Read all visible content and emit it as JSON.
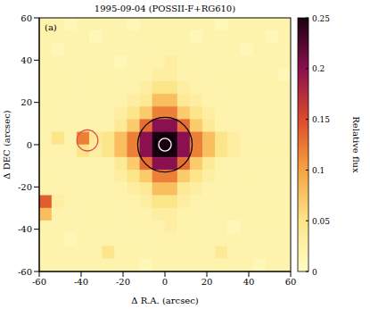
{
  "chart_data": {
    "type": "heatmap",
    "title": "1995-09-04 (POSSII-F+RG610)",
    "panel_label": "(a)",
    "x_label": "Δ R.A. (arcsec)",
    "y_label": "Δ DEC (arcsec)",
    "xlim": [
      -60,
      60
    ],
    "ylim": [
      -60,
      60
    ],
    "xticks": [
      -60,
      -40,
      -20,
      0,
      20,
      40,
      60
    ],
    "yticks": [
      -60,
      -40,
      -20,
      0,
      20,
      40,
      60
    ],
    "x": [
      -57,
      -51,
      -45,
      -39,
      -33,
      -27,
      -21,
      -15,
      -9,
      -3,
      3,
      9,
      15,
      21,
      27,
      33,
      39,
      45,
      51,
      57
    ],
    "y": [
      57,
      51,
      45,
      39,
      33,
      27,
      21,
      15,
      9,
      3,
      -3,
      -9,
      -15,
      -21,
      -27,
      -33,
      -39,
      -45,
      -51,
      -57
    ],
    "cells": [
      [
        0.02,
        0.02,
        0.01,
        0.02,
        0.02,
        0.02,
        0.02,
        0.01,
        0.02,
        0.02,
        0.02,
        0.02,
        0.02,
        0.02,
        0.01,
        0.02,
        0.02,
        0.02,
        0.02,
        0.02
      ],
      [
        0.02,
        0.02,
        0.02,
        0.02,
        0.01,
        0.02,
        0.02,
        0.02,
        0.02,
        0.02,
        0.02,
        0.02,
        0.01,
        0.02,
        0.02,
        0.02,
        0.02,
        0.02,
        0.01,
        0.02
      ],
      [
        0.02,
        0.01,
        0.02,
        0.02,
        0.02,
        0.02,
        0.02,
        0.02,
        0.02,
        0.02,
        0.02,
        0.02,
        0.02,
        0.02,
        0.02,
        0.02,
        0.01,
        0.02,
        0.02,
        0.02
      ],
      [
        0.02,
        0.02,
        0.02,
        0.02,
        0.02,
        0.02,
        0.01,
        0.02,
        0.02,
        0.02,
        0.03,
        0.02,
        0.02,
        0.02,
        0.02,
        0.02,
        0.02,
        0.02,
        0.02,
        0.02
      ],
      [
        0.02,
        0.02,
        0.02,
        0.02,
        0.02,
        0.02,
        0.02,
        0.02,
        0.02,
        0.03,
        0.03,
        0.02,
        0.02,
        0.02,
        0.02,
        0.02,
        0.02,
        0.02,
        0.02,
        0.01
      ],
      [
        0.02,
        0.02,
        0.02,
        0.02,
        0.02,
        0.02,
        0.02,
        0.02,
        0.03,
        0.05,
        0.05,
        0.03,
        0.02,
        0.02,
        0.02,
        0.02,
        0.02,
        0.02,
        0.02,
        0.02
      ],
      [
        0.02,
        0.02,
        0.02,
        0.02,
        0.02,
        0.02,
        0.02,
        0.03,
        0.04,
        0.08,
        0.08,
        0.04,
        0.03,
        0.02,
        0.02,
        0.02,
        0.02,
        0.02,
        0.02,
        0.02
      ],
      [
        0.02,
        0.02,
        0.02,
        0.02,
        0.02,
        0.02,
        0.03,
        0.05,
        0.07,
        0.12,
        0.12,
        0.07,
        0.05,
        0.03,
        0.02,
        0.02,
        0.02,
        0.02,
        0.02,
        0.02
      ],
      [
        0.02,
        0.02,
        0.02,
        0.02,
        0.02,
        0.02,
        0.04,
        0.07,
        0.13,
        0.2,
        0.2,
        0.13,
        0.07,
        0.04,
        0.02,
        0.02,
        0.02,
        0.02,
        0.02,
        0.02
      ],
      [
        0.02,
        0.05,
        0.02,
        0.12,
        0.04,
        0.05,
        0.08,
        0.12,
        0.2,
        0.25,
        0.25,
        0.2,
        0.12,
        0.08,
        0.05,
        0.03,
        0.02,
        0.02,
        0.02,
        0.02
      ],
      [
        0.02,
        0.02,
        0.02,
        0.05,
        0.03,
        0.05,
        0.08,
        0.12,
        0.2,
        0.25,
        0.25,
        0.2,
        0.12,
        0.08,
        0.05,
        0.03,
        0.02,
        0.02,
        0.02,
        0.02
      ],
      [
        0.02,
        0.02,
        0.02,
        0.02,
        0.02,
        0.02,
        0.04,
        0.07,
        0.13,
        0.2,
        0.2,
        0.13,
        0.07,
        0.04,
        0.02,
        0.02,
        0.02,
        0.02,
        0.02,
        0.02
      ],
      [
        0.02,
        0.02,
        0.02,
        0.02,
        0.02,
        0.02,
        0.03,
        0.05,
        0.07,
        0.12,
        0.12,
        0.07,
        0.05,
        0.03,
        0.02,
        0.02,
        0.02,
        0.02,
        0.02,
        0.02
      ],
      [
        0.02,
        0.02,
        0.02,
        0.02,
        0.02,
        0.02,
        0.02,
        0.03,
        0.04,
        0.08,
        0.08,
        0.04,
        0.03,
        0.02,
        0.02,
        0.02,
        0.02,
        0.02,
        0.02,
        0.02
      ],
      [
        0.14,
        0.03,
        0.02,
        0.02,
        0.02,
        0.02,
        0.02,
        0.02,
        0.03,
        0.05,
        0.05,
        0.03,
        0.02,
        0.02,
        0.02,
        0.02,
        0.02,
        0.02,
        0.02,
        0.02
      ],
      [
        0.08,
        0.02,
        0.02,
        0.02,
        0.02,
        0.02,
        0.02,
        0.02,
        0.02,
        0.03,
        0.03,
        0.02,
        0.02,
        0.02,
        0.02,
        0.02,
        0.02,
        0.02,
        0.02,
        0.02
      ],
      [
        0.02,
        0.02,
        0.02,
        0.02,
        0.02,
        0.02,
        0.02,
        0.02,
        0.02,
        0.02,
        0.03,
        0.02,
        0.02,
        0.02,
        0.02,
        0.01,
        0.02,
        0.02,
        0.02,
        0.02
      ],
      [
        0.02,
        0.02,
        0.01,
        0.02,
        0.02,
        0.02,
        0.02,
        0.02,
        0.02,
        0.02,
        0.02,
        0.02,
        0.02,
        0.02,
        0.02,
        0.02,
        0.02,
        0.02,
        0.02,
        0.02
      ],
      [
        0.02,
        0.02,
        0.02,
        0.02,
        0.02,
        0.05,
        0.02,
        0.02,
        0.02,
        0.02,
        0.02,
        0.02,
        0.02,
        0.02,
        0.04,
        0.02,
        0.02,
        0.02,
        0.02,
        0.02
      ],
      [
        0.02,
        0.02,
        0.02,
        0.02,
        0.02,
        0.02,
        0.02,
        0.02,
        0.01,
        0.02,
        0.02,
        0.02,
        0.02,
        0.02,
        0.02,
        0.02,
        0.02,
        0.01,
        0.02,
        0.02
      ]
    ],
    "colorbar": {
      "label": "Relative flux",
      "range": [
        0,
        0.25
      ],
      "ticks": [
        0,
        0.05,
        0.1,
        0.15,
        0.2,
        0.25
      ]
    },
    "circles": [
      {
        "x": 0,
        "y": 0,
        "r": 13,
        "color": "#000000"
      },
      {
        "x": 0,
        "y": 0,
        "r": 4.5,
        "color": "#000000"
      },
      {
        "x": 0,
        "y": 0,
        "r": 3,
        "color": "#ffffff"
      },
      {
        "x": -37,
        "y": 2,
        "r": 5,
        "color": "#e05050"
      }
    ]
  }
}
